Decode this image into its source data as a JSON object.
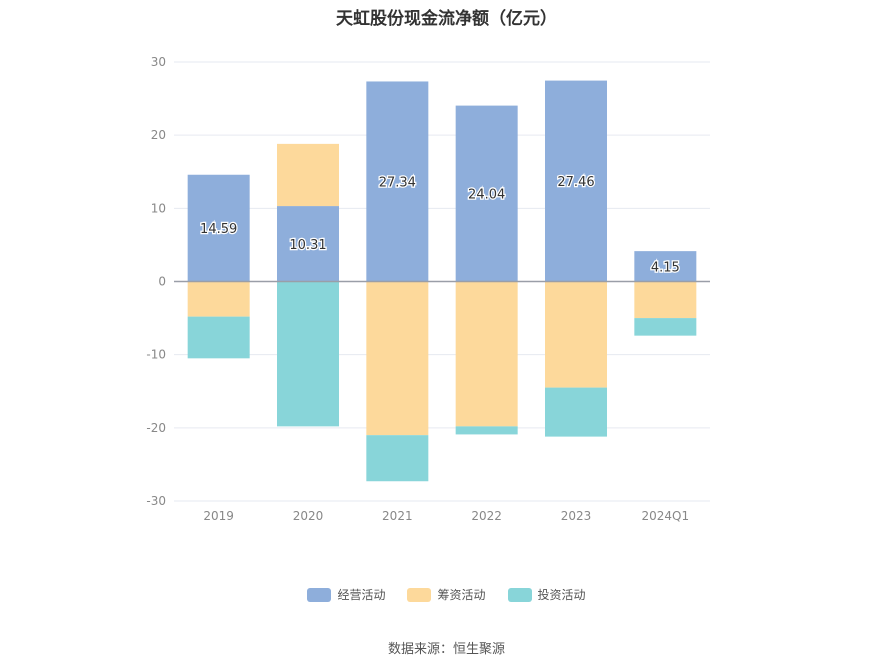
{
  "chart_data": {
    "type": "bar",
    "stacked": true,
    "title": "天虹股份现金流净额（亿元）",
    "categories": [
      "2019",
      "2020",
      "2021",
      "2022",
      "2023",
      "2024Q1"
    ],
    "series": [
      {
        "name": "经营活动",
        "color": "#8eaedb",
        "values": [
          14.59,
          10.31,
          27.34,
          24.04,
          27.46,
          4.15
        ]
      },
      {
        "name": "筹资活动",
        "color": "#fdd99b",
        "values": [
          -4.8,
          8.5,
          -21.0,
          -19.8,
          -14.5,
          -5.0
        ]
      },
      {
        "name": "投资活动",
        "color": "#88d5d9",
        "values": [
          -5.7,
          -19.8,
          -6.3,
          -1.1,
          -6.7,
          -2.4
        ]
      }
    ],
    "data_labels": [
      "14.59",
      "10.31",
      "27.34",
      "24.04",
      "27.46",
      "4.15"
    ],
    "ylim": [
      -30,
      30
    ],
    "yticks": [
      30,
      20,
      10,
      0,
      -10,
      -20,
      -30
    ],
    "grid": true,
    "legend_position": "bottom"
  },
  "source": "数据来源：恒生聚源"
}
